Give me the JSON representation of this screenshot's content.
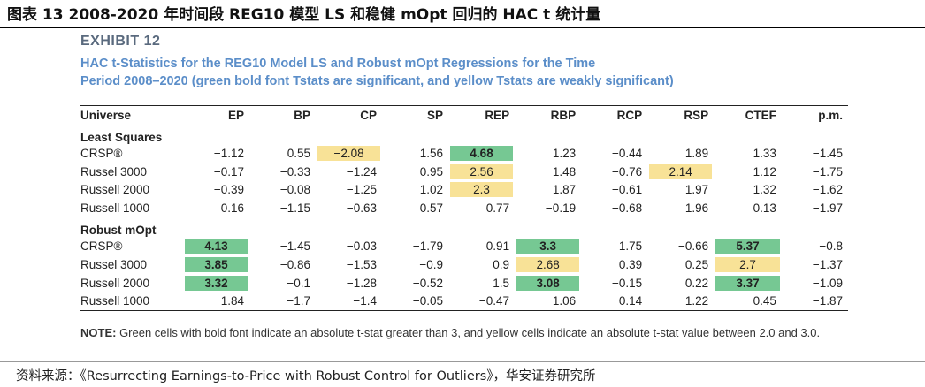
{
  "caption": "图表 13 2008-2020 年时间段 REG10 模型 LS 和稳健 mOpt 回归的 HAC t 统计量",
  "exhibit": "EXHIBIT 12",
  "subtitle_line1": "HAC t-Statistics for the REG10 Model LS and Robust mOpt Regressions for the Time",
  "subtitle_line2": "Period 2008–2020 (green bold font Tstats are significant, and yellow Tstats are weakly significant)",
  "headers": [
    "Universe",
    "EP",
    "BP",
    "CP",
    "SP",
    "REP",
    "RBP",
    "RCP",
    "RSP",
    "CTEF",
    "p.m."
  ],
  "sections": [
    {
      "title": "Least Squares",
      "rows": [
        {
          "label": "CRSP®",
          "values": [
            "−1.12",
            "0.55",
            "−2.08",
            "1.56",
            "4.68",
            "1.23",
            "−0.44",
            "1.89",
            "1.33",
            "−1.45"
          ],
          "hl": [
            "",
            "",
            "yellow",
            "",
            "green",
            "",
            "",
            "",
            "",
            ""
          ]
        },
        {
          "label": "Russel 3000",
          "values": [
            "−0.17",
            "−0.33",
            "−1.24",
            "0.95",
            "2.56",
            "1.48",
            "−0.76",
            "2.14",
            "1.12",
            "−1.75"
          ],
          "hl": [
            "",
            "",
            "",
            "",
            "yellow",
            "",
            "",
            "yellow",
            "",
            ""
          ]
        },
        {
          "label": "Russell 2000",
          "values": [
            "−0.39",
            "−0.08",
            "−1.25",
            "1.02",
            "2.3",
            "1.87",
            "−0.61",
            "1.97",
            "1.32",
            "−1.62"
          ],
          "hl": [
            "",
            "",
            "",
            "",
            "yellow",
            "",
            "",
            "",
            "",
            ""
          ]
        },
        {
          "label": "Russell 1000",
          "values": [
            "0.16",
            "−1.15",
            "−0.63",
            "0.57",
            "0.77",
            "−0.19",
            "−0.68",
            "1.96",
            "0.13",
            "−1.97"
          ],
          "hl": [
            "",
            "",
            "",
            "",
            "",
            "",
            "",
            "",
            "",
            ""
          ]
        }
      ]
    },
    {
      "title": "Robust mOpt",
      "rows": [
        {
          "label": "CRSP®",
          "values": [
            "4.13",
            "−1.45",
            "−0.03",
            "−1.79",
            "0.91",
            "3.3",
            "1.75",
            "−0.66",
            "5.37",
            "−0.8"
          ],
          "hl": [
            "green",
            "",
            "",
            "",
            "",
            "green",
            "",
            "",
            "green",
            ""
          ]
        },
        {
          "label": "Russel 3000",
          "values": [
            "3.85",
            "−0.86",
            "−1.53",
            "−0.9",
            "0.9",
            "2.68",
            "0.39",
            "0.25",
            "2.7",
            "−1.37"
          ],
          "hl": [
            "green",
            "",
            "",
            "",
            "",
            "yellow",
            "",
            "",
            "yellow",
            ""
          ]
        },
        {
          "label": "Russell 2000",
          "values": [
            "3.32",
            "−0.1",
            "−1.28",
            "−0.52",
            "1.5",
            "3.08",
            "−0.15",
            "0.22",
            "3.37",
            "−1.09"
          ],
          "hl": [
            "green",
            "",
            "",
            "",
            "",
            "green",
            "",
            "",
            "green",
            ""
          ]
        },
        {
          "label": "Russell 1000",
          "values": [
            "1.84",
            "−1.7",
            "−1.4",
            "−0.05",
            "−0.47",
            "1.06",
            "0.14",
            "1.22",
            "0.45",
            "−1.87"
          ],
          "hl": [
            "",
            "",
            "",
            "",
            "",
            "",
            "",
            "",
            "",
            ""
          ]
        }
      ]
    }
  ],
  "note_label": "NOTE:",
  "note_text": " Green cells with bold font indicate an absolute t-stat greater than 3, and yellow cells indicate an absolute t-stat value between 2.0 and 3.0.",
  "source": "资料来源：《Resurrecting Earnings-to-Price with Robust Control for Outliers》，华安证券研究所",
  "colors": {
    "green": "#76c893",
    "yellow": "#f8e297",
    "title_blue": "#5b8ec9",
    "exhibit_gray": "#5a6a7e"
  }
}
